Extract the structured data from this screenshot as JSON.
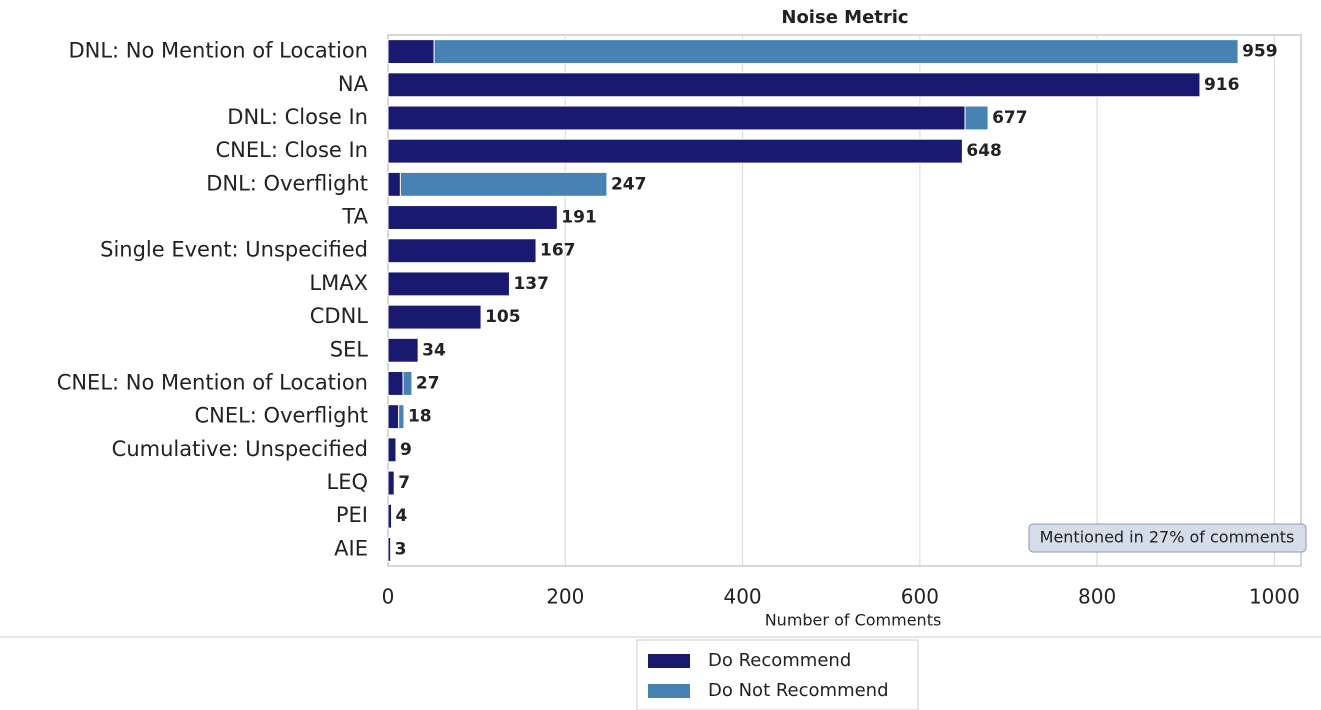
{
  "chart_data": {
    "type": "stacked_barh",
    "title": "Noise Metric",
    "xlabel": "Number of Comments",
    "annotation": "Mentioned in 27% of comments",
    "categories": [
      "DNL: No Mention of Location",
      "NA",
      "DNL: Close In",
      "CNEL: Close In",
      "DNL: Overflight",
      "TA",
      "Single Event: Unspecified",
      "LMAX",
      "CDNL",
      "SEL",
      "CNEL: No Mention of Location",
      "CNEL: Overflight",
      "Cumulative: Unspecified",
      "LEQ",
      "PEI",
      "AIE"
    ],
    "series": [
      {
        "name": "Do Recommend",
        "color": "#191970",
        "values": [
          52,
          916,
          651,
          648,
          14,
          191,
          167,
          137,
          105,
          34,
          17,
          12,
          9,
          7,
          4,
          3
        ]
      },
      {
        "name": "Do Not Recommend",
        "color": "#4682b4",
        "values": [
          907,
          0,
          26,
          0,
          233,
          0,
          0,
          0,
          0,
          0,
          10,
          6,
          0,
          0,
          0,
          0
        ]
      }
    ],
    "totals": [
      959,
      916,
      677,
      648,
      247,
      191,
      167,
      137,
      105,
      34,
      27,
      18,
      9,
      7,
      4,
      3
    ],
    "xlim": [
      0,
      1030
    ],
    "xticks": [
      0,
      200,
      400,
      600,
      800,
      1000
    ],
    "grid": true,
    "legend": "below"
  }
}
